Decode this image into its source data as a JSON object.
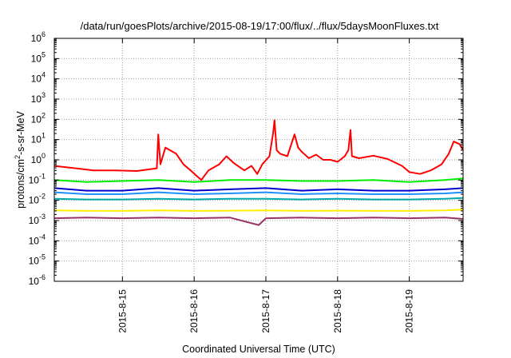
{
  "chart_data": {
    "type": "line",
    "title": "/data/run/goesPlots/archive/2015-08-19/17:00/flux/../flux/5daysMoonFluxes.txt",
    "xlabel": "Coordinated Universal Time (UTC)",
    "ylabel": "protons/cm²-s-sr-MeV",
    "ylabel_parts": {
      "pre": "protons/cm",
      "sup": "2",
      "post": "-s-sr-MeV"
    },
    "y_scale": "log",
    "ylim": [
      1e-06,
      1000000.0
    ],
    "y_ticks": [
      {
        "base": "10",
        "exp": "-6",
        "value": 1e-06
      },
      {
        "base": "10",
        "exp": "-5",
        "value": 1e-05
      },
      {
        "base": "10",
        "exp": "-4",
        "value": 0.0001
      },
      {
        "base": "10",
        "exp": "-3",
        "value": 0.001
      },
      {
        "base": "10",
        "exp": "-2",
        "value": 0.01
      },
      {
        "base": "10",
        "exp": "-1",
        "value": 0.1
      },
      {
        "base": "10",
        "exp": "0",
        "value": 1
      },
      {
        "base": "10",
        "exp": "1",
        "value": 10
      },
      {
        "base": "10",
        "exp": "2",
        "value": 100
      },
      {
        "base": "10",
        "exp": "3",
        "value": 1000
      },
      {
        "base": "10",
        "exp": "4",
        "value": 10000
      },
      {
        "base": "10",
        "exp": "5",
        "value": 100000
      },
      {
        "base": "10",
        "exp": "6",
        "value": 1000000
      }
    ],
    "x_ticks": [
      "2015-8-15",
      "2015-8-16",
      "2015-8-17",
      "2015-8-18",
      "2015-8-19"
    ],
    "xlim_days": [
      14.05,
      19.75
    ],
    "grid": true,
    "series": [
      {
        "color": "#ff0000",
        "values": [
          [
            14.05,
            0.5
          ],
          [
            14.3,
            0.4
          ],
          [
            14.6,
            0.3
          ],
          [
            14.9,
            0.3
          ],
          [
            15.2,
            0.28
          ],
          [
            15.48,
            0.38
          ],
          [
            15.5,
            18
          ],
          [
            15.53,
            0.6
          ],
          [
            15.6,
            4
          ],
          [
            15.75,
            2
          ],
          [
            15.85,
            0.6
          ],
          [
            15.95,
            0.3
          ],
          [
            16.1,
            0.1
          ],
          [
            16.2,
            0.3
          ],
          [
            16.35,
            0.6
          ],
          [
            16.45,
            1.5
          ],
          [
            16.55,
            0.7
          ],
          [
            16.7,
            0.3
          ],
          [
            16.8,
            0.5
          ],
          [
            16.88,
            0.2
          ],
          [
            16.95,
            0.6
          ],
          [
            17.05,
            1.5
          ],
          [
            17.1,
            20
          ],
          [
            17.12,
            90
          ],
          [
            17.15,
            3
          ],
          [
            17.2,
            2
          ],
          [
            17.3,
            1.5
          ],
          [
            17.4,
            18
          ],
          [
            17.45,
            4
          ],
          [
            17.5,
            2.5
          ],
          [
            17.6,
            1.2
          ],
          [
            17.7,
            1.8
          ],
          [
            17.8,
            1
          ],
          [
            17.9,
            1
          ],
          [
            18.0,
            0.8
          ],
          [
            18.1,
            1.5
          ],
          [
            18.15,
            3
          ],
          [
            18.18,
            30
          ],
          [
            18.2,
            1.5
          ],
          [
            18.3,
            1.2
          ],
          [
            18.5,
            1.6
          ],
          [
            18.7,
            1.1
          ],
          [
            18.9,
            0.5
          ],
          [
            19.0,
            0.25
          ],
          [
            19.15,
            0.2
          ],
          [
            19.3,
            0.3
          ],
          [
            19.45,
            0.6
          ],
          [
            19.55,
            2
          ],
          [
            19.62,
            8
          ],
          [
            19.7,
            6
          ],
          [
            19.75,
            3
          ]
        ]
      },
      {
        "color": "#00ee00",
        "values": [
          [
            14.05,
            0.1
          ],
          [
            14.5,
            0.08
          ],
          [
            15.0,
            0.09
          ],
          [
            15.5,
            0.1
          ],
          [
            16.0,
            0.08
          ],
          [
            16.5,
            0.1
          ],
          [
            17.0,
            0.1
          ],
          [
            17.5,
            0.09
          ],
          [
            18.0,
            0.09
          ],
          [
            18.5,
            0.1
          ],
          [
            19.0,
            0.08
          ],
          [
            19.5,
            0.1
          ],
          [
            19.75,
            0.12
          ]
        ]
      },
      {
        "color": "#0000cc",
        "values": [
          [
            14.05,
            0.04
          ],
          [
            14.5,
            0.03
          ],
          [
            15.0,
            0.03
          ],
          [
            15.5,
            0.04
          ],
          [
            16.0,
            0.03
          ],
          [
            16.5,
            0.035
          ],
          [
            17.0,
            0.04
          ],
          [
            17.5,
            0.03
          ],
          [
            18.0,
            0.035
          ],
          [
            18.5,
            0.03
          ],
          [
            19.0,
            0.03
          ],
          [
            19.5,
            0.035
          ],
          [
            19.75,
            0.04
          ]
        ]
      },
      {
        "color": "#1e90ff",
        "values": [
          [
            14.05,
            0.025
          ],
          [
            14.5,
            0.02
          ],
          [
            15.0,
            0.02
          ],
          [
            15.5,
            0.025
          ],
          [
            16.0,
            0.02
          ],
          [
            16.5,
            0.022
          ],
          [
            17.0,
            0.025
          ],
          [
            17.5,
            0.02
          ],
          [
            18.0,
            0.022
          ],
          [
            18.5,
            0.02
          ],
          [
            19.0,
            0.02
          ],
          [
            19.5,
            0.022
          ],
          [
            19.75,
            0.025
          ]
        ]
      },
      {
        "color": "#00aaaa",
        "values": [
          [
            14.05,
            0.012
          ],
          [
            14.5,
            0.011
          ],
          [
            15.0,
            0.011
          ],
          [
            15.5,
            0.012
          ],
          [
            16.0,
            0.011
          ],
          [
            16.5,
            0.012
          ],
          [
            17.0,
            0.012
          ],
          [
            17.5,
            0.011
          ],
          [
            18.0,
            0.012
          ],
          [
            18.5,
            0.011
          ],
          [
            19.0,
            0.011
          ],
          [
            19.5,
            0.012
          ],
          [
            19.75,
            0.013
          ]
        ]
      },
      {
        "color": "#ffee00",
        "values": [
          [
            14.05,
            0.0032
          ],
          [
            14.5,
            0.003
          ],
          [
            15.0,
            0.003
          ],
          [
            15.5,
            0.0032
          ],
          [
            16.0,
            0.003
          ],
          [
            16.5,
            0.0031
          ],
          [
            17.0,
            0.0032
          ],
          [
            17.5,
            0.003
          ],
          [
            18.0,
            0.0031
          ],
          [
            18.5,
            0.003
          ],
          [
            19.0,
            0.003
          ],
          [
            19.5,
            0.0032
          ],
          [
            19.75,
            0.0035
          ]
        ]
      },
      {
        "color": "#993366",
        "values": [
          [
            14.05,
            0.0013
          ],
          [
            14.5,
            0.0014
          ],
          [
            15.0,
            0.0013
          ],
          [
            15.5,
            0.0014
          ],
          [
            16.0,
            0.0013
          ],
          [
            16.5,
            0.0014
          ],
          [
            16.9,
            0.0006
          ],
          [
            17.0,
            0.0013
          ],
          [
            17.5,
            0.0014
          ],
          [
            18.0,
            0.0013
          ],
          [
            18.5,
            0.0014
          ],
          [
            19.0,
            0.0013
          ],
          [
            19.5,
            0.0014
          ],
          [
            19.75,
            0.0012
          ]
        ]
      }
    ]
  }
}
